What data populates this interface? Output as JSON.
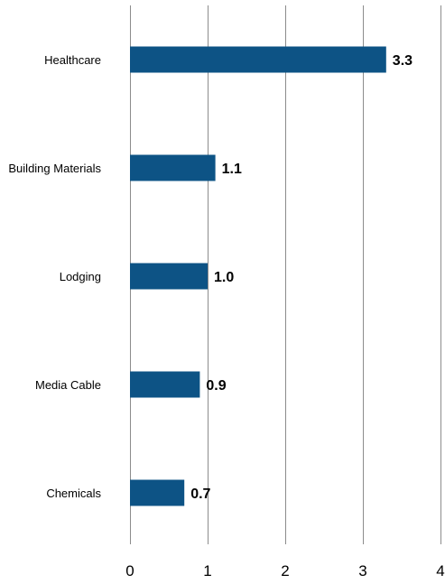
{
  "chart_data": {
    "type": "bar",
    "orientation": "horizontal",
    "categories": [
      "Healthcare",
      "Building Materials",
      "Lodging",
      "Media Cable",
      "Chemicals"
    ],
    "values": [
      3.3,
      1.1,
      1.0,
      0.9,
      0.7
    ],
    "value_labels": [
      "3.3",
      "1.1",
      "1.0",
      "0.9",
      "0.7"
    ],
    "x_ticks": [
      0,
      1,
      2,
      3,
      4
    ],
    "x_tick_labels": [
      "0",
      "1",
      "2",
      "3",
      "4"
    ],
    "xlim": [
      0,
      4
    ],
    "grid": "vertical",
    "title": "",
    "xlabel": "",
    "ylabel": "",
    "bar_color": "#0d5385",
    "grid_color": "#8c8c8c"
  }
}
